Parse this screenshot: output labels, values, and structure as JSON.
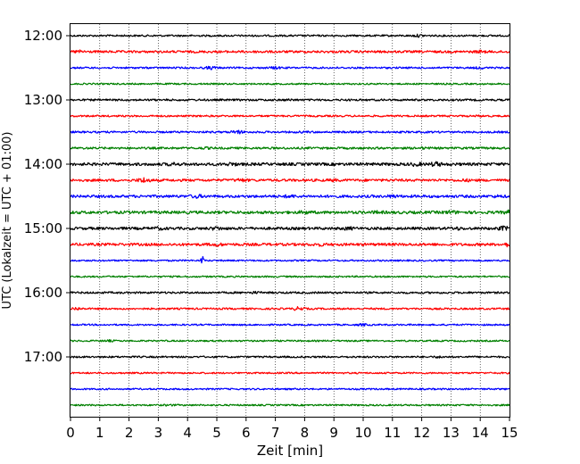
{
  "chart_data": {
    "type": "line",
    "title": "",
    "xlabel": "Zeit  [min]",
    "ylabel": "UTC (Lokalzeit = UTC + 01:00)",
    "xlim": [
      0,
      15
    ],
    "x_ticks": [
      0,
      1,
      2,
      3,
      4,
      5,
      6,
      7,
      8,
      9,
      10,
      11,
      12,
      13,
      14,
      15
    ],
    "y_tick_labels": [
      "12:00",
      "13:00",
      "14:00",
      "15:00",
      "16:00",
      "17:00"
    ],
    "grid": "vertical dotted lines at each minute",
    "trace_colors": [
      "#000000",
      "#ff0000",
      "#0000ff",
      "#008000"
    ],
    "series": [
      {
        "start": "12:00",
        "amplitude": 1.0,
        "events": [
          {
            "t": 11.9,
            "a": 1.9
          }
        ]
      },
      {
        "start": "12:15",
        "amplitude": 1.3,
        "events": [
          {
            "t": 0.3,
            "a": 2.2
          },
          {
            "t": 14.0,
            "a": 2.0
          },
          {
            "t": 6.5,
            "a": 1.6
          }
        ]
      },
      {
        "start": "12:30",
        "amplitude": 1.0,
        "events": [
          {
            "t": 4.8,
            "a": 2.2
          },
          {
            "t": 7.0,
            "a": 1.8
          },
          {
            "t": 14.0,
            "a": 1.6
          }
        ]
      },
      {
        "start": "12:45",
        "amplitude": 0.9,
        "events": []
      },
      {
        "start": "13:00",
        "amplitude": 1.1,
        "events": [
          {
            "t": 7.5,
            "a": 1.5
          }
        ]
      },
      {
        "start": "13:15",
        "amplitude": 1.0,
        "events": [
          {
            "t": 14.0,
            "a": 1.3
          }
        ]
      },
      {
        "start": "13:30",
        "amplitude": 1.1,
        "events": [
          {
            "t": 5.7,
            "a": 2.5
          },
          {
            "t": 8.0,
            "a": 1.5
          }
        ]
      },
      {
        "start": "13:45",
        "amplitude": 1.2,
        "events": [
          {
            "t": 4.6,
            "a": 1.6
          },
          {
            "t": 12.0,
            "a": 1.7
          }
        ]
      },
      {
        "start": "14:00",
        "amplitude": 1.6,
        "events": [
          {
            "t": 3.5,
            "a": 2.4
          },
          {
            "t": 5.5,
            "a": 2.5
          },
          {
            "t": 11.8,
            "a": 2.6
          },
          {
            "t": 12.5,
            "a": 3.2
          }
        ]
      },
      {
        "start": "14:15",
        "amplitude": 1.4,
        "events": [
          {
            "t": 2.5,
            "a": 3.5
          },
          {
            "t": 5.8,
            "a": 2.4
          },
          {
            "t": 9.0,
            "a": 2.0
          },
          {
            "t": 13.5,
            "a": 2.0
          }
        ]
      },
      {
        "start": "14:30",
        "amplitude": 1.5,
        "events": [
          {
            "t": 4.3,
            "a": 2.6
          },
          {
            "t": 7.5,
            "a": 2.4
          },
          {
            "t": 11.0,
            "a": 2.3
          },
          {
            "t": 14.6,
            "a": 2.0
          }
        ]
      },
      {
        "start": "14:45",
        "amplitude": 1.6,
        "events": [
          {
            "t": 8.0,
            "a": 2.4
          },
          {
            "t": 10.5,
            "a": 2.2
          },
          {
            "t": 13.0,
            "a": 2.6
          },
          {
            "t": 15.0,
            "a": 3.0
          }
        ]
      },
      {
        "start": "15:00",
        "amplitude": 1.5,
        "events": [
          {
            "t": 3.0,
            "a": 2.3
          },
          {
            "t": 5.0,
            "a": 2.6
          },
          {
            "t": 9.5,
            "a": 2.4
          },
          {
            "t": 13.2,
            "a": 2.3
          },
          {
            "t": 14.8,
            "a": 3.0
          }
        ]
      },
      {
        "start": "15:15",
        "amplitude": 1.5,
        "events": [
          {
            "t": 5.0,
            "a": 2.5
          },
          {
            "t": 8.5,
            "a": 2.2
          },
          {
            "t": 15.0,
            "a": 3.2
          }
        ]
      },
      {
        "start": "15:30",
        "amplitude": 0.9,
        "events": [
          {
            "t": 4.5,
            "a": 7.0
          }
        ]
      },
      {
        "start": "15:45",
        "amplitude": 0.9,
        "events": []
      },
      {
        "start": "16:00",
        "amplitude": 1.1,
        "events": [
          {
            "t": 6.3,
            "a": 1.7
          }
        ]
      },
      {
        "start": "16:15",
        "amplitude": 1.0,
        "events": [
          {
            "t": 0.2,
            "a": 2.0
          },
          {
            "t": 7.8,
            "a": 2.5
          }
        ]
      },
      {
        "start": "16:30",
        "amplitude": 0.9,
        "events": [
          {
            "t": 10.0,
            "a": 1.6
          }
        ]
      },
      {
        "start": "16:45",
        "amplitude": 0.9,
        "events": [
          {
            "t": 1.3,
            "a": 1.4
          }
        ]
      },
      {
        "start": "17:00",
        "amplitude": 1.0,
        "events": [
          {
            "t": 12.6,
            "a": 1.5
          }
        ]
      },
      {
        "start": "17:15",
        "amplitude": 0.9,
        "events": []
      },
      {
        "start": "17:30",
        "amplitude": 0.9,
        "events": []
      },
      {
        "start": "17:45",
        "amplitude": 0.9,
        "events": [
          {
            "t": 3.4,
            "a": 1.3
          }
        ]
      }
    ]
  }
}
